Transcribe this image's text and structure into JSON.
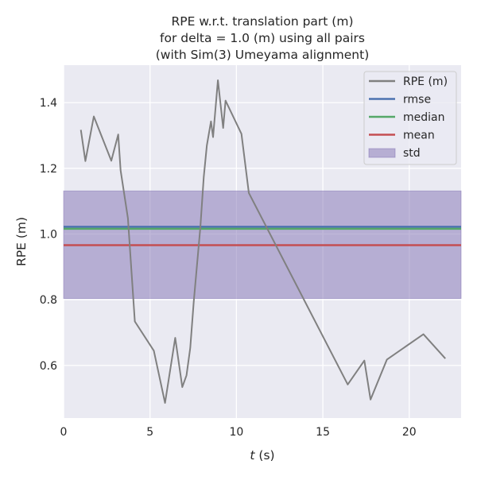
{
  "chart_data": {
    "type": "line",
    "title": [
      "RPE w.r.t. translation part (m)",
      "for delta = 1.0 (m) using all pairs",
      "(with Sim(3) Umeyama alignment)"
    ],
    "xlabel_var": "t",
    "xlabel_unit": " (s)",
    "ylabel": "RPE (m)",
    "xlim": [
      0,
      23
    ],
    "ylim": [
      0.44,
      1.514
    ],
    "xticks": [
      0,
      5,
      10,
      15,
      20
    ],
    "yticks": [
      0.6,
      0.8,
      1.0,
      1.2,
      1.4
    ],
    "ytick_labels": [
      "0.6",
      "0.8",
      "1.0",
      "1.2",
      "1.4"
    ],
    "grid": true,
    "legend_position": "top-right",
    "series": [
      {
        "name": "RPE (m)",
        "color": "#808080",
        "x": [
          1.0,
          1.26,
          1.75,
          2.76,
          3.16,
          3.3,
          3.72,
          4.12,
          5.22,
          5.87,
          6.46,
          6.87,
          7.11,
          7.33,
          7.53,
          7.91,
          8.11,
          8.29,
          8.53,
          8.65,
          8.93,
          9.23,
          9.37,
          10.29,
          10.72,
          16.44,
          17.4,
          17.76,
          18.71,
          20.82,
          22.09
        ],
        "y": [
          1.317,
          1.222,
          1.358,
          1.223,
          1.303,
          1.194,
          1.048,
          0.734,
          0.645,
          0.486,
          0.684,
          0.534,
          0.57,
          0.653,
          0.794,
          1.02,
          1.174,
          1.27,
          1.343,
          1.295,
          1.468,
          1.323,
          1.406,
          1.305,
          1.125,
          0.542,
          0.615,
          0.496,
          0.618,
          0.695,
          0.621
        ]
      }
    ],
    "stats": [
      {
        "name": "rmse",
        "value": 1.022,
        "color": "#4c72b0"
      },
      {
        "name": "median",
        "value": 1.016,
        "color": "#55a868"
      },
      {
        "name": "mean",
        "value": 0.966,
        "color": "#c44e52"
      }
    ],
    "std": {
      "name": "std",
      "low": 0.804,
      "high": 1.131,
      "color": "#8172b3"
    }
  }
}
